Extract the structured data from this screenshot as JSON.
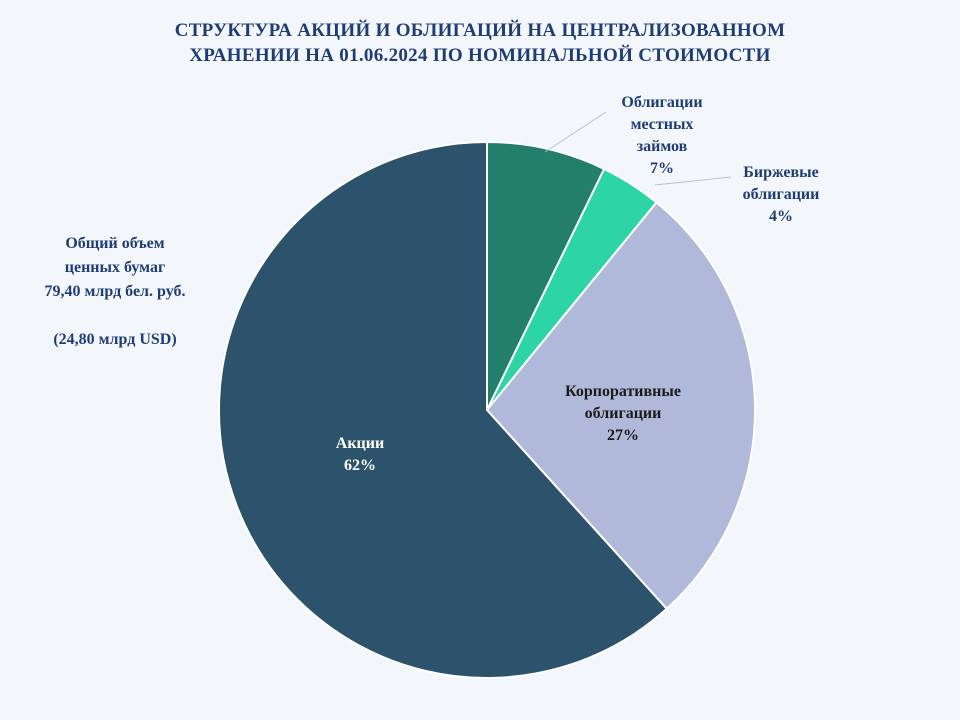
{
  "title": {
    "line1": "СТРУКТУРА  АКЦИЙ  И  ОБЛИГАЦИЙ  НА  ЦЕНТРАЛИЗОВАННОМ",
    "line2": "ХРАНЕНИИ  НА  01.06.2024  ПО  НОМИНАЛЬНОЙ  СТОИМОСТИ"
  },
  "note": {
    "line1": "Общий объем",
    "line2": "ценных бумаг",
    "line3": "79,40  млрд бел. руб.",
    "line4": "(24,80  млрд USD)"
  },
  "colors": {
    "title": "#1f3c75",
    "label_dark": "#1f3c75",
    "label_light": "#ffffff",
    "background": "#f3f7fb"
  },
  "chart_data": {
    "type": "pie",
    "title": "СТРУКТУРА  АКЦИЙ  И  ОБЛИГАЦИЙ  НА  ЦЕНТРАЛИЗОВАННОМ ХРАНЕНИИ  НА  01.06.2024  ПО  НОМИНАЛЬНОЙ  СТОИМОСТИ",
    "start_angle_deg": 0,
    "direction": "clockwise",
    "slices": [
      {
        "label_lines": [
          "Облигации",
          "местных",
          "займов"
        ],
        "pct_label": "7%",
        "value": 7.2,
        "color": "#237e6c",
        "label_pos": "outside",
        "label_color": "#1f3c75"
      },
      {
        "label_lines": [
          "Биржевые",
          "облигации"
        ],
        "pct_label": "4%",
        "value": 3.7,
        "color": "#2dd4a6",
        "label_pos": "outside",
        "label_color": "#1f3c75"
      },
      {
        "label_lines": [
          "Корпоративные",
          "облигации"
        ],
        "pct_label": "27%",
        "value": 27.4,
        "color": "#b1b9db",
        "label_pos": "inside",
        "label_color": "#1a1a1a"
      },
      {
        "label_lines": [
          "Акции"
        ],
        "pct_label": "62%",
        "value": 61.7,
        "color": "#2d526b",
        "label_pos": "inside",
        "label_color": "#ffffff"
      }
    ]
  }
}
